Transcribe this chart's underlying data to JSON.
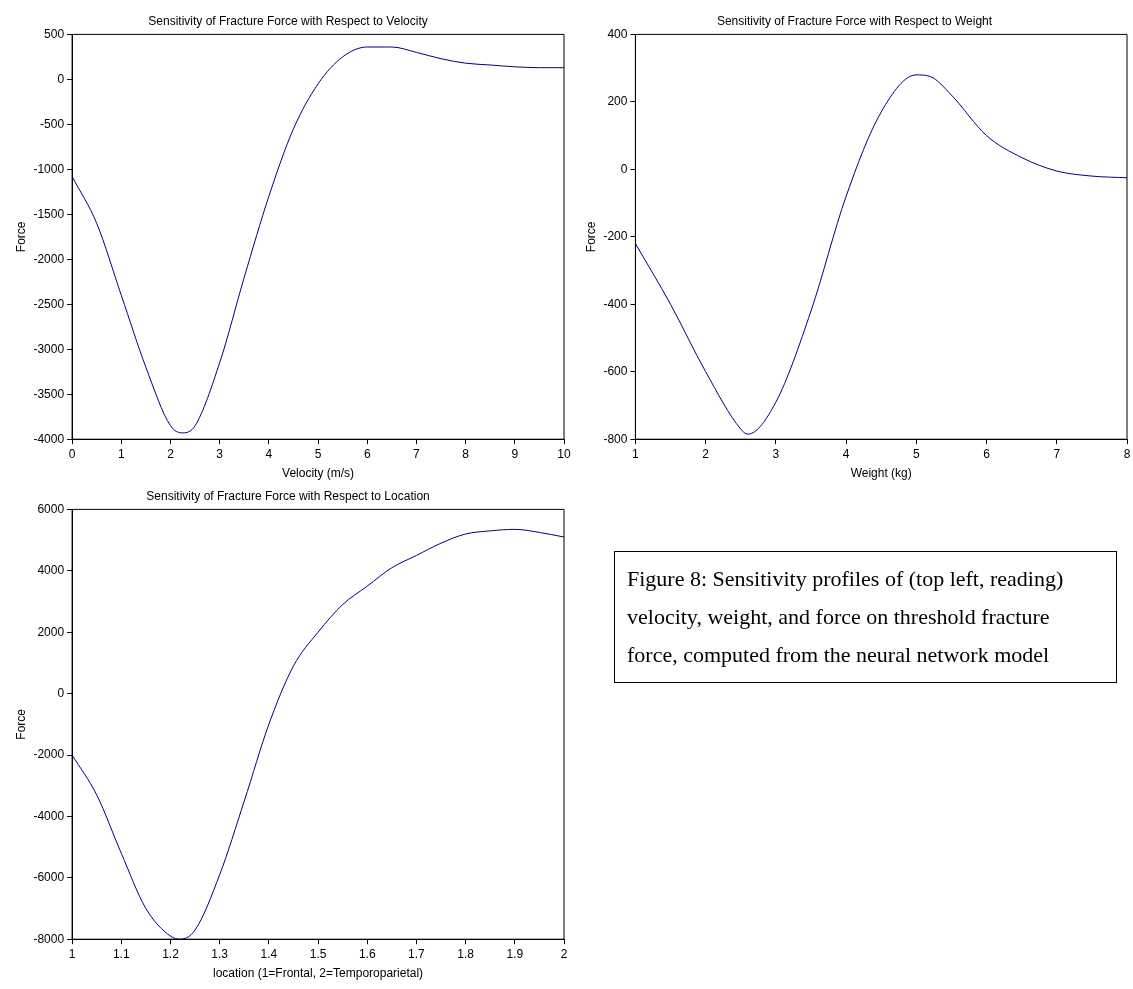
{
  "chart_data": [
    {
      "type": "line",
      "title": "Sensitivity of Fracture Force with Respect to Velocity",
      "xlabel": "Velocity (m/s)",
      "ylabel": "Force",
      "xlim": [
        0,
        10
      ],
      "xticks": [
        0,
        1,
        2,
        3,
        4,
        5,
        6,
        7,
        8,
        9,
        10
      ],
      "ylim": [
        -4000,
        500
      ],
      "yticks": [
        -4000,
        -3500,
        -3000,
        -2500,
        -2000,
        -1500,
        -1000,
        -500,
        0,
        500
      ],
      "marker": "none",
      "series": [
        {
          "color": "#00007f",
          "x": [
            0,
            0.5,
            1,
            1.5,
            2,
            2.25,
            2.5,
            3,
            3.5,
            4,
            4.5,
            5,
            5.5,
            6,
            6.5,
            7,
            7.5,
            8,
            8.5,
            9,
            9.5,
            10
          ],
          "values": [
            -1080,
            -1600,
            -2400,
            -3200,
            -3850,
            -3930,
            -3850,
            -3150,
            -2200,
            -1300,
            -550,
            -50,
            250,
            360,
            360,
            300,
            230,
            180,
            160,
            140,
            130,
            130
          ]
        }
      ]
    },
    {
      "type": "line",
      "title": "Sensitivity of Fracture Force with Respect to Weight",
      "xlabel": "Weight (kg)",
      "ylabel": "Force",
      "xlim": [
        1,
        8
      ],
      "xticks": [
        1,
        2,
        3,
        4,
        5,
        6,
        7,
        8
      ],
      "ylim": [
        -800,
        400
      ],
      "yticks": [
        -800,
        -600,
        -400,
        -200,
        0,
        200,
        400
      ],
      "marker": "none",
      "series": [
        {
          "color": "#00007f",
          "x": [
            1,
            1.5,
            2,
            2.5,
            2.6,
            3,
            3.5,
            4,
            4.5,
            5,
            5.2,
            5.5,
            6,
            6.5,
            7,
            7.5,
            8
          ],
          "values": [
            -220,
            -400,
            -600,
            -770,
            -785,
            -690,
            -420,
            -80,
            170,
            280,
            275,
            220,
            100,
            35,
            -5,
            -20,
            -25
          ]
        }
      ]
    },
    {
      "type": "line",
      "title": "Sensitivity of Fracture Force with Respect to Location",
      "xlabel": "location (1=Frontal, 2=Temporoparietal)",
      "ylabel": "Force",
      "xlim": [
        1,
        2
      ],
      "xticks": [
        1,
        1.1,
        1.2,
        1.3,
        1.4,
        1.5,
        1.6,
        1.7,
        1.8,
        1.9,
        2
      ],
      "ylim": [
        -8000,
        6000
      ],
      "yticks": [
        -8000,
        -6000,
        -4000,
        -2000,
        0,
        2000,
        4000,
        6000
      ],
      "marker": "none",
      "series": [
        {
          "color": "#00007f",
          "x": [
            1,
            1.05,
            1.1,
            1.15,
            1.2,
            1.22,
            1.25,
            1.3,
            1.35,
            1.4,
            1.45,
            1.5,
            1.55,
            1.6,
            1.65,
            1.7,
            1.75,
            1.8,
            1.85,
            1.9,
            1.95,
            2
          ],
          "values": [
            -2000,
            -3300,
            -5200,
            -7000,
            -7900,
            -8000,
            -7700,
            -5900,
            -3500,
            -1000,
            900,
            2000,
            2900,
            3500,
            4100,
            4500,
            4900,
            5200,
            5300,
            5350,
            5250,
            5100
          ]
        }
      ]
    },
    {
      "type": "other",
      "annotations": [
        "Figure 8: Sensitivity profiles of (top left, reading) velocity, weight, and force on threshold fracture force, computed from the neural network model"
      ]
    }
  ]
}
